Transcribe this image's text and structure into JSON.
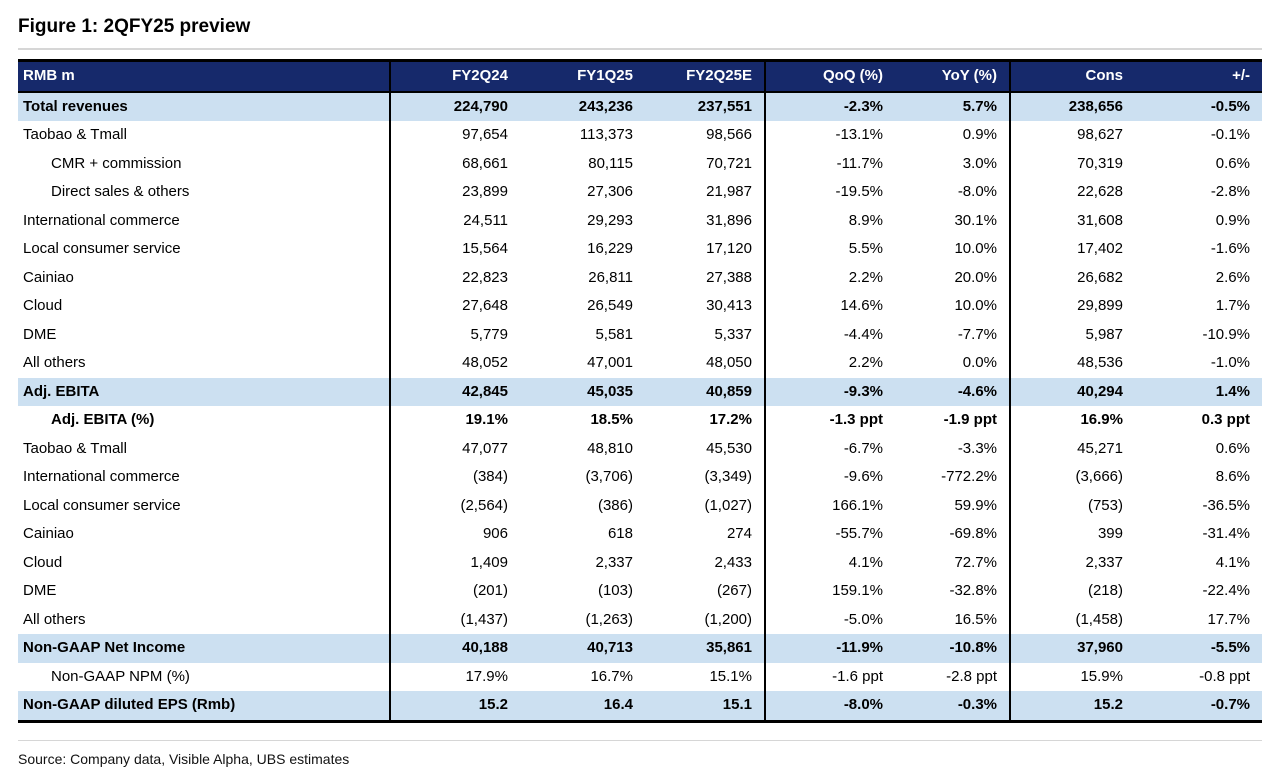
{
  "figure": {
    "title": "Figure 1: 2QFY25 preview",
    "source": "Source: Company data, Visible Alpha, UBS estimates"
  },
  "colors": {
    "header_bg": "#16296B",
    "header_text": "#FFFFFF",
    "highlight_bg": "#CCE0F1",
    "rule_gray": "#D6D6D6"
  },
  "table": {
    "columns": [
      "RMB m",
      "FY2Q24",
      "FY1Q25",
      "FY2Q25E",
      "QoQ (%)",
      "YoY (%)",
      "Cons",
      "+/-"
    ],
    "rows": [
      {
        "label": "Total revenues",
        "indent": 0,
        "bold": true,
        "highlight": true,
        "values": [
          "224,790",
          "243,236",
          "237,551",
          "-2.3%",
          "5.7%",
          "238,656",
          "-0.5%"
        ]
      },
      {
        "label": "Taobao & Tmall",
        "indent": 0,
        "bold": false,
        "highlight": false,
        "values": [
          "97,654",
          "113,373",
          "98,566",
          "-13.1%",
          "0.9%",
          "98,627",
          "-0.1%"
        ]
      },
      {
        "label": "CMR + commission",
        "indent": 1,
        "bold": false,
        "highlight": false,
        "values": [
          "68,661",
          "80,115",
          "70,721",
          "-11.7%",
          "3.0%",
          "70,319",
          "0.6%"
        ]
      },
      {
        "label": "Direct sales & others",
        "indent": 1,
        "bold": false,
        "highlight": false,
        "values": [
          "23,899",
          "27,306",
          "21,987",
          "-19.5%",
          "-8.0%",
          "22,628",
          "-2.8%"
        ]
      },
      {
        "label": "International commerce",
        "indent": 0,
        "bold": false,
        "highlight": false,
        "values": [
          "24,511",
          "29,293",
          "31,896",
          "8.9%",
          "30.1%",
          "31,608",
          "0.9%"
        ]
      },
      {
        "label": "Local consumer service",
        "indent": 0,
        "bold": false,
        "highlight": false,
        "values": [
          "15,564",
          "16,229",
          "17,120",
          "5.5%",
          "10.0%",
          "17,402",
          "-1.6%"
        ]
      },
      {
        "label": "Cainiao",
        "indent": 0,
        "bold": false,
        "highlight": false,
        "values": [
          "22,823",
          "26,811",
          "27,388",
          "2.2%",
          "20.0%",
          "26,682",
          "2.6%"
        ]
      },
      {
        "label": "Cloud",
        "indent": 0,
        "bold": false,
        "highlight": false,
        "values": [
          "27,648",
          "26,549",
          "30,413",
          "14.6%",
          "10.0%",
          "29,899",
          "1.7%"
        ]
      },
      {
        "label": "DME",
        "indent": 0,
        "bold": false,
        "highlight": false,
        "values": [
          "5,779",
          "5,581",
          "5,337",
          "-4.4%",
          "-7.7%",
          "5,987",
          "-10.9%"
        ]
      },
      {
        "label": "All others",
        "indent": 0,
        "bold": false,
        "highlight": false,
        "values": [
          "48,052",
          "47,001",
          "48,050",
          "2.2%",
          "0.0%",
          "48,536",
          "-1.0%"
        ]
      },
      {
        "label": "Adj. EBITA",
        "indent": 0,
        "bold": true,
        "highlight": true,
        "values": [
          "42,845",
          "45,035",
          "40,859",
          "-9.3%",
          "-4.6%",
          "40,294",
          "1.4%"
        ]
      },
      {
        "label": "Adj. EBITA (%)",
        "indent": 1,
        "bold": true,
        "highlight": false,
        "values": [
          "19.1%",
          "18.5%",
          "17.2%",
          "-1.3 ppt",
          "-1.9 ppt",
          "16.9%",
          "0.3 ppt"
        ]
      },
      {
        "label": "Taobao & Tmall",
        "indent": 0,
        "bold": false,
        "highlight": false,
        "values": [
          "47,077",
          "48,810",
          "45,530",
          "-6.7%",
          "-3.3%",
          "45,271",
          "0.6%"
        ]
      },
      {
        "label": "International commerce",
        "indent": 0,
        "bold": false,
        "highlight": false,
        "values": [
          "(384)",
          "(3,706)",
          "(3,349)",
          "-9.6%",
          "-772.2%",
          "(3,666)",
          "8.6%"
        ]
      },
      {
        "label": "Local consumer service",
        "indent": 0,
        "bold": false,
        "highlight": false,
        "values": [
          "(2,564)",
          "(386)",
          "(1,027)",
          "166.1%",
          "59.9%",
          "(753)",
          "-36.5%"
        ]
      },
      {
        "label": "Cainiao",
        "indent": 0,
        "bold": false,
        "highlight": false,
        "values": [
          "906",
          "618",
          "274",
          "-55.7%",
          "-69.8%",
          "399",
          "-31.4%"
        ]
      },
      {
        "label": "Cloud",
        "indent": 0,
        "bold": false,
        "highlight": false,
        "values": [
          "1,409",
          "2,337",
          "2,433",
          "4.1%",
          "72.7%",
          "2,337",
          "4.1%"
        ]
      },
      {
        "label": "DME",
        "indent": 0,
        "bold": false,
        "highlight": false,
        "values": [
          "(201)",
          "(103)",
          "(267)",
          "159.1%",
          "-32.8%",
          "(218)",
          "-22.4%"
        ]
      },
      {
        "label": "All others",
        "indent": 0,
        "bold": false,
        "highlight": false,
        "values": [
          "(1,437)",
          "(1,263)",
          "(1,200)",
          "-5.0%",
          "16.5%",
          "(1,458)",
          "17.7%"
        ]
      },
      {
        "label": "Non-GAAP Net Income",
        "indent": 0,
        "bold": true,
        "highlight": true,
        "values": [
          "40,188",
          "40,713",
          "35,861",
          "-11.9%",
          "-10.8%",
          "37,960",
          "-5.5%"
        ]
      },
      {
        "label": "Non-GAAP NPM (%)",
        "indent": 1,
        "bold": false,
        "highlight": false,
        "values": [
          "17.9%",
          "16.7%",
          "15.1%",
          "-1.6 ppt",
          "-2.8 ppt",
          "15.9%",
          "-0.8 ppt"
        ]
      },
      {
        "label": "Non-GAAP diluted EPS (Rmb)",
        "indent": 0,
        "bold": true,
        "highlight": true,
        "values": [
          "15.2",
          "16.4",
          "15.1",
          "-8.0%",
          "-0.3%",
          "15.2",
          "-0.7%"
        ]
      }
    ]
  }
}
